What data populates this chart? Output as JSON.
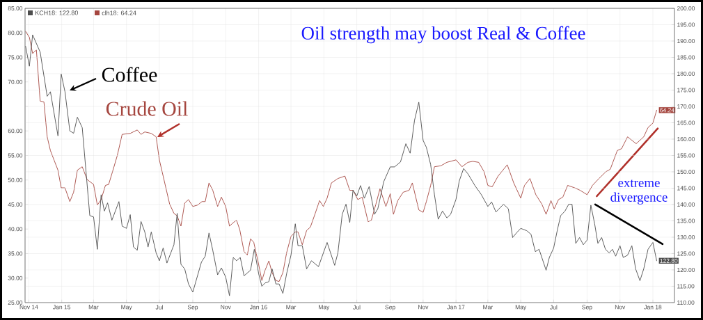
{
  "chart_data": {
    "type": "line",
    "title": "Oil strength may boost Real & Coffee",
    "annotations": [
      "Coffee",
      "Crude Oil",
      "extreme divergence"
    ],
    "xlim": [
      "2014-10-25",
      "2018-02-10"
    ],
    "xticks": [
      {
        "value": "2014-11-01",
        "label": "Nov 14"
      },
      {
        "value": "2015-01-01",
        "label": "Jan 15"
      },
      {
        "value": "2015-03-01",
        "label": "Mar"
      },
      {
        "value": "2015-05-01",
        "label": "May"
      },
      {
        "value": "2015-07-01",
        "label": "Jul"
      },
      {
        "value": "2015-09-01",
        "label": "Sep"
      },
      {
        "value": "2015-11-01",
        "label": "Nov"
      },
      {
        "value": "2016-01-01",
        "label": "Jan 16"
      },
      {
        "value": "2016-03-01",
        "label": "Mar"
      },
      {
        "value": "2016-05-01",
        "label": "May"
      },
      {
        "value": "2016-07-01",
        "label": "Jul"
      },
      {
        "value": "2016-09-01",
        "label": "Sep"
      },
      {
        "value": "2016-11-01",
        "label": "Nov"
      },
      {
        "value": "2017-01-01",
        "label": "Jan 17"
      },
      {
        "value": "2017-03-01",
        "label": "Mar"
      },
      {
        "value": "2017-05-01",
        "label": "May"
      },
      {
        "value": "2017-07-01",
        "label": "Jul"
      },
      {
        "value": "2017-09-01",
        "label": "Sep"
      },
      {
        "value": "2017-11-01",
        "label": "Nov"
      },
      {
        "value": "2018-01-01",
        "label": "Jan 18"
      }
    ],
    "ylim": [
      25,
      85
    ],
    "yticks": [
      {
        "value": 25,
        "label": "25.00"
      },
      {
        "value": 30,
        "label": "30.00"
      },
      {
        "value": 35,
        "label": "35.00"
      },
      {
        "value": 40,
        "label": "40.00"
      },
      {
        "value": 45,
        "label": "45.00"
      },
      {
        "value": 50,
        "label": "50.00"
      },
      {
        "value": 55,
        "label": "55.00"
      },
      {
        "value": 60,
        "label": "60.00"
      },
      {
        "value": 65,
        "label": null
      },
      {
        "value": 70,
        "label": "70.00"
      },
      {
        "value": 75,
        "label": "75.00"
      },
      {
        "value": 80,
        "label": "80.00"
      },
      {
        "value": 85,
        "label": "85.00"
      }
    ],
    "y2lim": [
      110,
      200
    ],
    "y2ticks": [
      {
        "value": 110,
        "label": "110.00"
      },
      {
        "value": 115,
        "label": "115.00"
      },
      {
        "value": 120,
        "label": "120.00"
      },
      {
        "value": 125,
        "label": "125.00"
      },
      {
        "value": 130,
        "label": "130.00"
      },
      {
        "value": 135,
        "label": "135.00"
      },
      {
        "value": 140,
        "label": "140.00"
      },
      {
        "value": 145,
        "label": "145.00"
      },
      {
        "value": 150,
        "label": "150.00"
      },
      {
        "value": 155,
        "label": "155.00"
      },
      {
        "value": 160,
        "label": "160.00"
      },
      {
        "value": 165,
        "label": "165.00"
      },
      {
        "value": 170,
        "label": "170.00"
      },
      {
        "value": 175,
        "label": "175.00"
      },
      {
        "value": 180,
        "label": "180.00"
      },
      {
        "value": 185,
        "label": "185.00"
      },
      {
        "value": 190,
        "label": "190.00"
      },
      {
        "value": 195,
        "label": "195.00"
      },
      {
        "value": 200,
        "label": "200.00"
      }
    ],
    "grid": true,
    "legend": "top left",
    "series": [
      {
        "name": "KCH18: 122.80",
        "color": "#4d4d4d",
        "axis": "y2",
        "x": [
          "2014-10-26",
          "2014-11-02",
          "2014-11-08",
          "2014-11-22",
          "2014-12-05",
          "2014-12-11",
          "2014-12-25",
          "2014-12-31",
          "2015-01-07",
          "2015-01-16",
          "2015-01-23",
          "2015-01-30",
          "2015-02-08",
          "2015-02-22",
          "2015-03-01",
          "2015-03-08",
          "2015-03-15",
          "2015-03-21",
          "2015-03-27",
          "2015-04-04",
          "2015-04-17",
          "2015-04-23",
          "2015-05-01",
          "2015-05-08",
          "2015-05-14",
          "2015-05-21",
          "2015-05-28",
          "2015-06-04",
          "2015-06-10",
          "2015-06-16",
          "2015-06-25",
          "2015-07-01",
          "2015-07-08",
          "2015-07-15",
          "2015-07-28",
          "2015-08-03",
          "2015-08-10",
          "2015-08-17",
          "2015-08-24",
          "2015-09-01",
          "2015-09-17",
          "2015-09-24",
          "2015-10-01",
          "2015-10-08",
          "2015-10-17",
          "2015-10-24",
          "2015-11-01",
          "2015-11-08",
          "2015-11-15",
          "2015-11-21",
          "2015-11-28",
          "2015-12-05",
          "2015-12-17",
          "2015-12-24",
          "2016-01-01",
          "2016-01-07",
          "2016-01-13",
          "2016-01-20",
          "2016-01-26",
          "2016-02-02",
          "2016-02-08",
          "2016-02-15",
          "2016-02-22",
          "2016-03-01",
          "2016-03-09",
          "2016-03-14",
          "2016-03-22",
          "2016-03-30",
          "2016-04-08",
          "2016-04-21",
          "2016-05-07",
          "2016-05-21",
          "2016-05-27",
          "2016-06-04",
          "2016-06-11",
          "2016-06-18",
          "2016-06-24",
          "2016-07-01",
          "2016-07-08",
          "2016-07-15",
          "2016-07-24",
          "2016-08-03",
          "2016-08-09",
          "2016-08-20",
          "2016-09-01",
          "2016-09-09",
          "2016-09-20",
          "2016-09-30",
          "2016-10-08",
          "2016-10-16",
          "2016-10-24",
          "2016-11-01",
          "2016-11-07",
          "2016-11-15",
          "2016-11-22",
          "2016-11-29",
          "2016-12-07",
          "2016-12-15",
          "2016-12-22",
          "2017-01-01",
          "2017-01-07",
          "2017-01-15",
          "2017-01-23",
          "2017-02-05",
          "2017-02-17",
          "2017-03-01",
          "2017-03-08",
          "2017-03-16",
          "2017-03-30",
          "2017-04-08",
          "2017-04-16",
          "2017-04-23",
          "2017-05-01",
          "2017-05-12",
          "2017-05-20",
          "2017-05-28",
          "2017-06-04",
          "2017-06-17",
          "2017-06-23",
          "2017-07-01",
          "2017-07-08",
          "2017-07-14",
          "2017-07-22",
          "2017-07-29",
          "2017-08-04",
          "2017-08-11",
          "2017-08-18",
          "2017-08-25",
          "2017-09-01",
          "2017-09-08",
          "2017-09-15",
          "2017-09-21",
          "2017-09-28",
          "2017-10-05",
          "2017-10-12",
          "2017-10-18",
          "2017-10-24",
          "2017-11-01",
          "2017-11-07",
          "2017-11-15",
          "2017-11-23",
          "2017-11-30",
          "2017-12-08",
          "2017-12-15",
          "2017-12-23",
          "2018-01-01",
          "2018-01-08"
        ],
        "values": [
          188.4,
          182.3,
          191.9,
          186.6,
          173.1,
          174.5,
          161.0,
          179.9,
          174.5,
          162.5,
          161.8,
          166.7,
          163.5,
          136.6,
          136.2,
          126.3,
          143.0,
          138.0,
          140.5,
          135.2,
          140.9,
          133.4,
          132.7,
          136.9,
          127.0,
          126.0,
          134.8,
          131.6,
          127.0,
          131.6,
          125.2,
          122.8,
          126.7,
          122.1,
          127.7,
          137.3,
          121.7,
          120.3,
          115.7,
          113.2,
          122.4,
          124.2,
          131.3,
          126.0,
          118.5,
          120.6,
          117.8,
          112.1,
          123.8,
          122.8,
          123.8,
          118.2,
          119.9,
          126.3,
          118.9,
          115.0,
          116.0,
          116.4,
          120.3,
          115.7,
          115.7,
          112.8,
          118.9,
          124.5,
          134.1,
          127.4,
          127.4,
          120.3,
          122.8,
          121.0,
          128.4,
          121.4,
          125.2,
          137.0,
          140.1,
          134.5,
          144.4,
          142.6,
          145.8,
          141.9,
          145.5,
          137.0,
          138.7,
          147.0,
          151.5,
          151.5,
          153.0,
          158.6,
          155.7,
          165.7,
          171.3,
          159.6,
          157.5,
          152.2,
          143.0,
          135.5,
          138.0,
          135.9,
          137.0,
          141.6,
          147.2,
          151.0,
          149.4,
          145.8,
          143.0,
          139.4,
          140.8,
          137.7,
          140.1,
          138.7,
          129.9,
          131.3,
          132.7,
          132.0,
          130.9,
          125.6,
          126.3,
          119.9,
          123.8,
          126.7,
          132.3,
          136.6,
          138.0,
          140.1,
          140.1,
          128.1,
          129.9,
          127.7,
          129.1,
          139.8,
          134.1,
          128.1,
          129.9,
          126.3,
          125.2,
          126.3,
          124.2,
          127.4,
          123.8,
          124.5,
          127.4,
          120.3,
          116.7,
          120.3,
          126.3,
          128.4,
          122.8
        ],
        "value_labels": [
          null,
          null,
          null,
          null,
          null,
          null,
          null,
          null,
          null,
          null,
          null,
          null,
          null,
          null,
          null,
          null,
          null,
          null,
          null,
          null,
          null,
          null,
          null,
          null,
          null,
          null,
          null,
          null,
          null,
          null,
          null,
          null,
          null,
          null,
          null,
          null,
          null,
          null,
          null,
          null,
          null,
          null,
          null,
          null,
          null,
          null,
          null,
          null,
          null,
          null,
          null,
          null,
          null,
          null,
          null,
          null,
          null,
          null,
          null,
          null,
          null,
          null,
          null,
          null,
          null,
          null,
          null,
          null,
          null,
          null,
          null,
          null,
          null,
          null,
          null,
          null,
          null,
          null,
          null,
          null,
          null,
          null,
          null,
          null,
          null,
          null,
          null,
          null,
          null,
          null,
          null,
          null,
          null,
          null,
          null,
          null,
          null,
          null,
          null,
          null,
          null,
          null,
          null,
          null,
          null,
          null,
          null,
          null,
          null,
          null,
          null,
          null,
          null,
          null,
          null,
          null,
          null,
          null,
          null,
          null,
          null,
          null,
          null,
          null,
          null,
          null,
          null,
          null,
          null,
          null,
          null,
          null,
          null,
          null,
          null,
          null,
          null,
          null,
          null,
          null,
          null,
          null,
          null,
          null,
          null,
          null,
          "122.80"
        ]
      },
      {
        "name": "clh18: 64.24",
        "color": "#a5463f",
        "axis": "y",
        "x": [
          "2014-10-26",
          "2014-11-02",
          "2014-11-08",
          "2014-11-15",
          "2014-11-22",
          "2014-11-29",
          "2014-12-05",
          "2014-12-11",
          "2014-12-18",
          "2014-12-25",
          "2014-12-31",
          "2015-01-07",
          "2015-01-16",
          "2015-01-23",
          "2015-01-30",
          "2015-02-08",
          "2015-02-17",
          "2015-03-01",
          "2015-03-08",
          "2015-03-15",
          "2015-03-23",
          "2015-03-29",
          "2015-04-06",
          "2015-04-14",
          "2015-04-23",
          "2015-05-08",
          "2015-05-21",
          "2015-05-28",
          "2015-06-04",
          "2015-06-16",
          "2015-06-25",
          "2015-07-01",
          "2015-07-08",
          "2015-07-20",
          "2015-07-28",
          "2015-08-03",
          "2015-08-10",
          "2015-08-17",
          "2015-08-24",
          "2015-09-01",
          "2015-09-10",
          "2015-09-18",
          "2015-09-24",
          "2015-10-01",
          "2015-10-08",
          "2015-10-17",
          "2015-10-24",
          "2015-11-01",
          "2015-11-08",
          "2015-11-15",
          "2015-11-21",
          "2015-11-27",
          "2015-12-05",
          "2015-12-11",
          "2015-12-17",
          "2015-12-23",
          "2016-01-01",
          "2016-01-07",
          "2016-01-13",
          "2016-01-20",
          "2016-01-26",
          "2016-02-02",
          "2016-02-08",
          "2016-02-15",
          "2016-02-22",
          "2016-03-01",
          "2016-03-09",
          "2016-03-14",
          "2016-03-22",
          "2016-03-30",
          "2016-04-06",
          "2016-04-15",
          "2016-04-23",
          "2016-04-30",
          "2016-05-07",
          "2016-05-15",
          "2016-05-27",
          "2016-06-09",
          "2016-06-18",
          "2016-06-24",
          "2016-07-03",
          "2016-07-11",
          "2016-07-22",
          "2016-07-28",
          "2016-08-05",
          "2016-08-13",
          "2016-08-24",
          "2016-09-01",
          "2016-09-07",
          "2016-09-15",
          "2016-09-25",
          "2016-10-06",
          "2016-10-12",
          "2016-10-24",
          "2016-11-01",
          "2016-11-07",
          "2016-11-15",
          "2016-11-22",
          "2016-12-04",
          "2016-12-15",
          "2017-01-01",
          "2017-01-12",
          "2017-01-23",
          "2017-02-01",
          "2017-02-12",
          "2017-02-22",
          "2017-03-01",
          "2017-03-09",
          "2017-03-20",
          "2017-04-06",
          "2017-04-18",
          "2017-05-01",
          "2017-05-08",
          "2017-05-18",
          "2017-05-29",
          "2017-06-09",
          "2017-06-17",
          "2017-06-26",
          "2017-07-02",
          "2017-07-10",
          "2017-07-18",
          "2017-07-27",
          "2017-08-09",
          "2017-08-19",
          "2017-09-01",
          "2017-09-11",
          "2017-09-23",
          "2017-10-06",
          "2017-10-14",
          "2017-10-27",
          "2017-11-04",
          "2017-11-15",
          "2017-12-01",
          "2017-12-15",
          "2017-12-23",
          "2018-01-01",
          "2018-01-08"
        ],
        "values": [
          80.3,
          79.1,
          75.8,
          76.5,
          66.1,
          65.9,
          58.8,
          56.0,
          54.0,
          52.0,
          48.4,
          48.4,
          45.6,
          47.5,
          52.0,
          52.7,
          50.1,
          49.1,
          44.9,
          46.0,
          48.9,
          49.1,
          52.0,
          55.0,
          59.3,
          59.5,
          60.2,
          59.3,
          59.8,
          59.5,
          58.8,
          54.1,
          50.8,
          45.1,
          43.2,
          42.7,
          40.6,
          45.3,
          46.0,
          44.6,
          44.9,
          45.6,
          45.6,
          49.4,
          47.9,
          44.6,
          46.5,
          44.6,
          40.6,
          41.3,
          41.8,
          39.9,
          35.4,
          34.7,
          38.0,
          37.3,
          32.8,
          29.5,
          31.6,
          33.5,
          31.1,
          29.5,
          29.3,
          31.1,
          35.2,
          38.5,
          39.4,
          39.4,
          36.8,
          39.7,
          40.4,
          43.2,
          45.8,
          44.6,
          46.3,
          49.4,
          50.3,
          50.8,
          47.9,
          47.9,
          46.0,
          46.5,
          41.5,
          41.8,
          44.9,
          48.2,
          44.6,
          47.2,
          43.0,
          45.8,
          47.5,
          47.9,
          49.4,
          43.9,
          43.4,
          45.6,
          48.9,
          52.7,
          52.9,
          53.6,
          54.1,
          52.7,
          53.6,
          53.8,
          53.6,
          51.7,
          48.9,
          48.6,
          50.8,
          53.1,
          49.4,
          46.3,
          48.9,
          50.3,
          47.0,
          45.1,
          43.0,
          45.8,
          44.1,
          46.0,
          46.5,
          48.9,
          48.4,
          47.9,
          47.0,
          48.9,
          50.3,
          51.7,
          52.2,
          56.0,
          56.4,
          58.8,
          57.4,
          58.8,
          60.7,
          61.6,
          64.24
        ],
        "value_labels": [
          null,
          null,
          null,
          null,
          null,
          null,
          null,
          null,
          null,
          null,
          null,
          null,
          null,
          null,
          null,
          null,
          null,
          null,
          null,
          null,
          null,
          null,
          null,
          null,
          null,
          null,
          null,
          null,
          null,
          null,
          null,
          null,
          null,
          null,
          null,
          null,
          null,
          null,
          null,
          null,
          null,
          null,
          null,
          null,
          null,
          null,
          null,
          null,
          null,
          null,
          null,
          null,
          null,
          null,
          null,
          null,
          null,
          null,
          null,
          null,
          null,
          null,
          null,
          null,
          null,
          null,
          null,
          null,
          null,
          null,
          null,
          null,
          null,
          null,
          null,
          null,
          null,
          null,
          null,
          null,
          null,
          null,
          null,
          null,
          null,
          null,
          null,
          null,
          null,
          null,
          null,
          null,
          null,
          null,
          null,
          null,
          null,
          null,
          null,
          null,
          null,
          null,
          null,
          null,
          null,
          null,
          null,
          null,
          null,
          null,
          null,
          null,
          null,
          null,
          null,
          null,
          null,
          null,
          null,
          null,
          null,
          null,
          null,
          null,
          null,
          null,
          null,
          null,
          null,
          null,
          null,
          null,
          null,
          null,
          null,
          null,
          "64.24"
        ]
      },
      {
        "color": "#b0302a",
        "axis": "y",
        "x": [
          "2017-09-19",
          "2018-01-10"
        ],
        "values": [
          46.7,
          60.5
        ]
      },
      {
        "color": "#000000",
        "axis": "y2",
        "x": [
          "2017-09-16",
          "2018-01-19"
        ],
        "values": [
          140.0,
          127.9
        ]
      }
    ]
  }
}
